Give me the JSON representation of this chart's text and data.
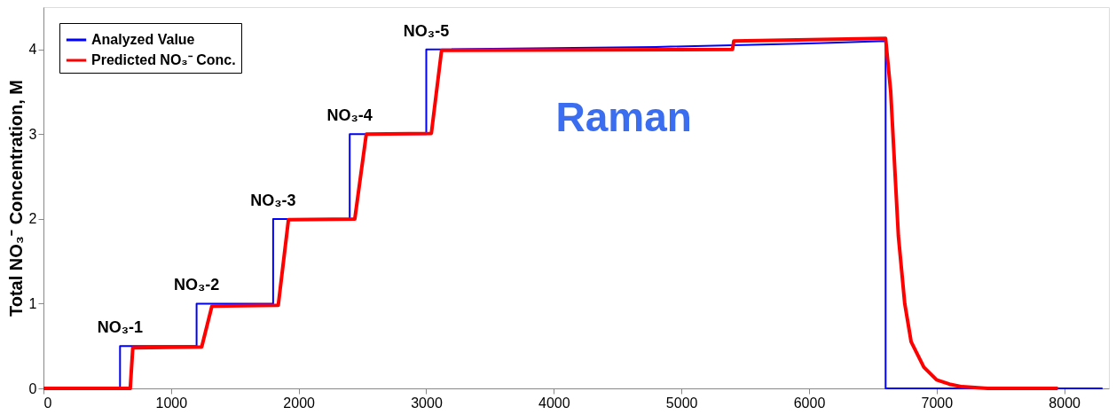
{
  "chart_data": {
    "type": "line",
    "ylabel": "Total NO₃⁻ Concentration, M",
    "xlim": [
      0,
      8350
    ],
    "ylim": [
      0,
      4.5
    ],
    "xticks": [
      0,
      1000,
      2000,
      3000,
      4000,
      5000,
      6000,
      7000,
      8000
    ],
    "yticks": [
      0,
      1,
      2,
      3,
      4
    ],
    "grid": false,
    "legend": "top left",
    "line_style": "solid",
    "marker": "none",
    "series": [
      {
        "name": "Analyzed Value",
        "color": "#0000ff",
        "x": [
          0,
          600,
          600,
          1200,
          1200,
          1800,
          1800,
          2400,
          2400,
          3000,
          3000,
          4800,
          6000,
          6600,
          6600,
          8300
        ],
        "values": [
          0,
          0,
          0.5,
          0.5,
          1,
          1,
          2,
          2,
          3,
          3,
          4,
          4.03,
          4.07,
          4.1,
          0,
          0
        ]
      },
      {
        "name": "Predicted NO₃⁻ Conc.",
        "color": "#ff0000",
        "x": [
          0,
          680,
          700,
          1240,
          1320,
          1840,
          1920,
          2440,
          2530,
          3040,
          3120,
          5400,
          5410,
          6600,
          6640,
          6700,
          6750,
          6800,
          6900,
          7000,
          7100,
          7200,
          7400,
          7950
        ],
        "values": [
          0,
          0,
          0.48,
          0.49,
          0.97,
          0.98,
          1.99,
          2.0,
          3.0,
          3.01,
          3.99,
          4.0,
          4.1,
          4.13,
          3.5,
          1.8,
          1.0,
          0.55,
          0.25,
          0.1,
          0.05,
          0.02,
          0,
          0
        ]
      }
    ],
    "annotations": [
      {
        "text": "NO₃-1",
        "x": 600,
        "y": 0.5
      },
      {
        "text": "NO₃-2",
        "x": 1200,
        "y": 1
      },
      {
        "text": "NO₃-3",
        "x": 1800,
        "y": 2
      },
      {
        "text": "NO₃-4",
        "x": 2400,
        "y": 3
      },
      {
        "text": "NO₃-5",
        "x": 3000,
        "y": 4
      },
      "Raman"
    ]
  }
}
